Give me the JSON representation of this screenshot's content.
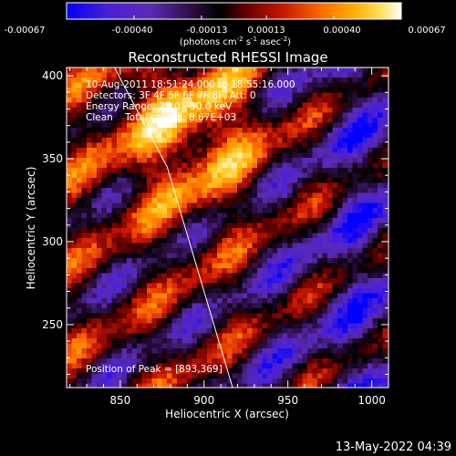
{
  "colorbar": {
    "ticks": [
      "-0.00067",
      "-0.00040",
      "-0.00013",
      "0.00013",
      "0.00040",
      "0.00067"
    ],
    "unit_base": "(photons cm",
    "unit_exp1": "-2",
    "unit_mid": " s",
    "unit_exp2": "-1",
    "unit_mid2": " asec",
    "unit_exp3": "-2",
    "unit_end": ")",
    "range": [
      -0.00067,
      0.00067
    ],
    "colormap": [
      "#0000ff",
      "#4a1fd8",
      "#5b2bb5",
      "#2a0d3f",
      "#000000",
      "#6a0000",
      "#cc1800",
      "#ff6a00",
      "#ffb000",
      "#ffe060",
      "#ffffff"
    ]
  },
  "chart_data": {
    "type": "heatmap",
    "title": "Reconstructed RHESSI Image",
    "xlabel": "Heliocentric X (arcsec)",
    "ylabel": "Heliocentric Y (arcsec)",
    "xlim": [
      818,
      1010
    ],
    "ylim": [
      212,
      405
    ],
    "xticks": [
      850,
      900,
      950,
      1000
    ],
    "yticks": [
      250,
      300,
      350,
      400
    ],
    "peak": [
      893,
      369
    ],
    "limb_line": [
      [
        845,
        408
      ],
      [
        878,
        345
      ],
      [
        917,
        212
      ]
    ],
    "value_range": [
      -0.00067,
      0.00067
    ]
  },
  "info": {
    "line1": "10-Aug-2011 18:51:24.000 to 18:55:16.000",
    "line2": "Detectors: 3F 4F 5F 6F 7F 8F, Att: 0",
    "line3": "Energy Range: 25.0 - 50.0 keV",
    "line4": "Clean    Total counts: 8.67E+03",
    "peak_text": "Position of Peak = [893,369]"
  },
  "footer": {
    "timestamp": "13-May-2022 04:39"
  }
}
